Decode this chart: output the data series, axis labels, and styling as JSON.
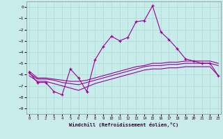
{
  "xlabel": "Windchill (Refroidissement éolien,°C)",
  "bg_color": "#c8ecea",
  "grid_color": "#aad8d4",
  "line_color": "#990099",
  "xlim": [
    -0.3,
    23.3
  ],
  "ylim": [
    -9.5,
    0.5
  ],
  "yticks": [
    0,
    -1,
    -2,
    -3,
    -4,
    -5,
    -6,
    -7,
    -8,
    -9
  ],
  "xticks": [
    0,
    1,
    2,
    3,
    4,
    5,
    6,
    7,
    8,
    9,
    10,
    11,
    12,
    13,
    14,
    15,
    16,
    17,
    18,
    19,
    20,
    21,
    22,
    23
  ],
  "series1_x": [
    0,
    1,
    2,
    3,
    4,
    5,
    6,
    7,
    8,
    9,
    10,
    11,
    12,
    13,
    14,
    15,
    16,
    17,
    18,
    19,
    20,
    21,
    22,
    23
  ],
  "series1_y": [
    -5.8,
    -6.7,
    -6.7,
    -7.5,
    -7.8,
    -5.5,
    -6.3,
    -7.5,
    -4.7,
    -3.5,
    -2.6,
    -3.0,
    -2.7,
    -1.3,
    -1.2,
    0.1,
    -2.2,
    -2.9,
    -3.7,
    -4.6,
    -4.8,
    -5.0,
    -5.0,
    -6.1
  ],
  "series2_x": [
    0,
    1,
    2,
    3,
    4,
    5,
    6,
    7,
    8,
    9,
    10,
    11,
    12,
    13,
    14,
    15,
    16,
    17,
    18,
    19,
    20,
    21,
    22,
    23
  ],
  "series2_y": [
    -5.7,
    -6.3,
    -6.3,
    -6.4,
    -6.5,
    -6.6,
    -6.6,
    -6.5,
    -6.3,
    -6.1,
    -5.9,
    -5.7,
    -5.5,
    -5.3,
    -5.2,
    -5.0,
    -5.0,
    -4.9,
    -4.9,
    -4.8,
    -4.8,
    -4.8,
    -4.8,
    -5.0
  ],
  "series3_x": [
    0,
    1,
    2,
    3,
    4,
    5,
    6,
    7,
    8,
    9,
    10,
    11,
    12,
    13,
    14,
    15,
    16,
    17,
    18,
    19,
    20,
    21,
    22,
    23
  ],
  "series3_y": [
    -5.9,
    -6.4,
    -6.4,
    -6.5,
    -6.7,
    -6.8,
    -6.9,
    -6.7,
    -6.5,
    -6.3,
    -6.1,
    -5.9,
    -5.7,
    -5.5,
    -5.3,
    -5.2,
    -5.2,
    -5.1,
    -5.1,
    -5.0,
    -5.0,
    -5.0,
    -5.0,
    -5.2
  ],
  "series4_x": [
    0,
    1,
    2,
    3,
    4,
    5,
    6,
    7,
    8,
    9,
    10,
    11,
    12,
    13,
    14,
    15,
    16,
    17,
    18,
    19,
    20,
    21,
    22,
    23
  ],
  "series4_y": [
    -6.1,
    -6.6,
    -6.6,
    -6.8,
    -7.0,
    -7.2,
    -7.4,
    -7.1,
    -6.8,
    -6.6,
    -6.4,
    -6.2,
    -6.0,
    -5.8,
    -5.6,
    -5.5,
    -5.5,
    -5.4,
    -5.4,
    -5.3,
    -5.3,
    -5.3,
    -5.3,
    -6.1
  ]
}
